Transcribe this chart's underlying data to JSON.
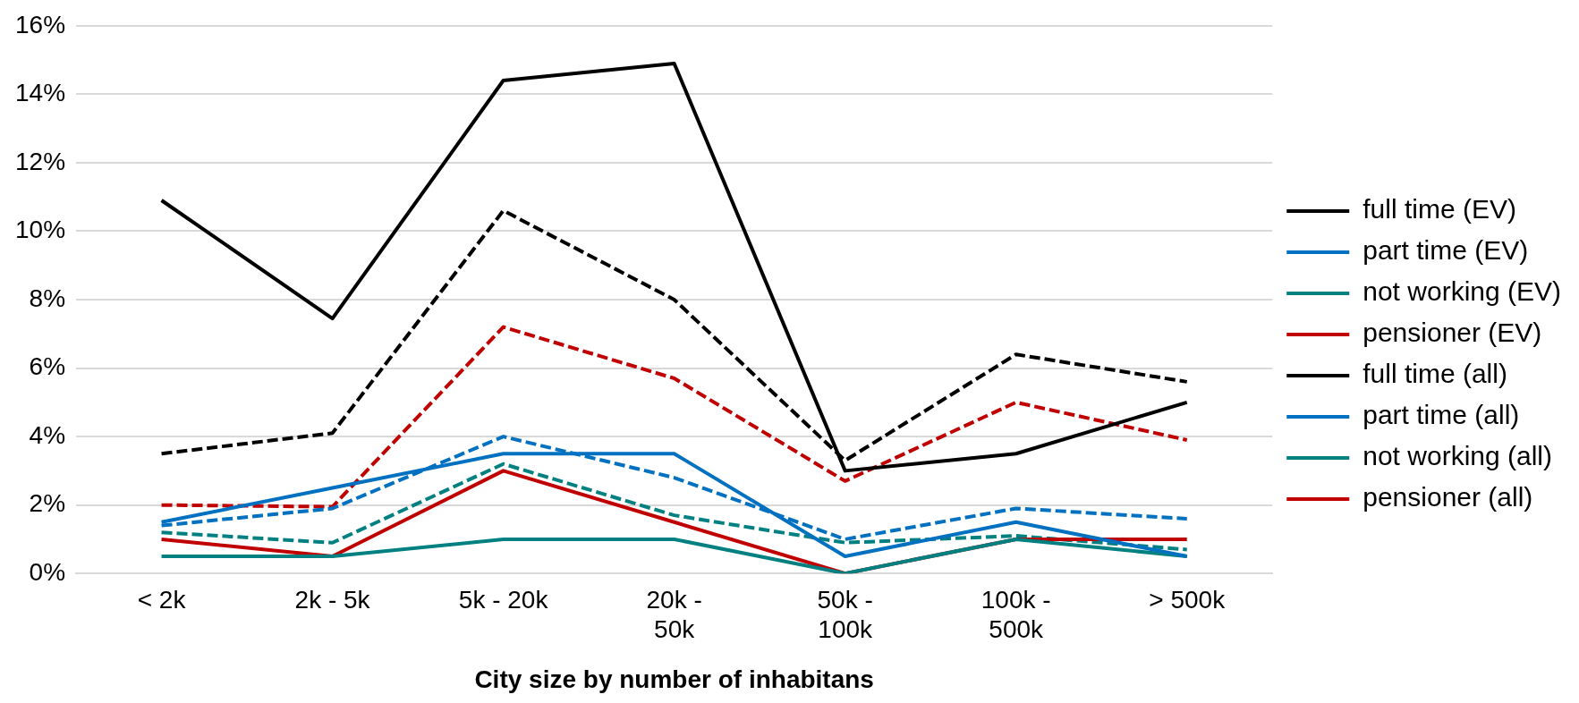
{
  "chart_data": {
    "type": "line",
    "xlabel": "City size by number of inhabitans",
    "categories": [
      "< 2k",
      "2k - 5k",
      "5k - 20k",
      "20k -\n50k",
      "50k -\n100k",
      "100k -\n500k",
      "> 500k"
    ],
    "series": [
      {
        "name": "full time (EV)",
        "color": "#000000",
        "line_style": "solid",
        "values": [
          10.9,
          7.45,
          14.4,
          14.9,
          3.0,
          3.5,
          5.0
        ]
      },
      {
        "name": "part time (EV)",
        "color": "#0070c0",
        "line_style": "solid",
        "values": [
          1.5,
          2.5,
          3.5,
          3.5,
          0.5,
          1.5,
          0.5
        ]
      },
      {
        "name": "not working (EV)",
        "color": "#008080",
        "line_style": "solid",
        "values": [
          0.5,
          0.5,
          1.0,
          1.0,
          0.0,
          1.0,
          0.5
        ]
      },
      {
        "name": "pensioner (EV)",
        "color": "#c00000",
        "line_style": "solid",
        "values": [
          1.0,
          0.5,
          3.0,
          1.5,
          0.0,
          1.0,
          1.0
        ]
      },
      {
        "name": "full time (all)",
        "color": "#000000",
        "line_style": "dashed",
        "values": [
          3.5,
          4.1,
          10.6,
          8.0,
          3.3,
          6.4,
          5.6
        ]
      },
      {
        "name": "part time (all)",
        "color": "#0070c0",
        "line_style": "dashed",
        "values": [
          1.4,
          1.9,
          4.0,
          2.8,
          1.0,
          1.9,
          1.6
        ]
      },
      {
        "name": "not working (all)",
        "color": "#008080",
        "line_style": "dashed",
        "values": [
          1.2,
          0.9,
          3.2,
          1.7,
          0.9,
          1.1,
          0.7
        ]
      },
      {
        "name": "pensioner (all)",
        "color": "#c00000",
        "line_style": "dashed",
        "values": [
          2.0,
          1.95,
          7.2,
          5.7,
          2.7,
          5.0,
          3.9
        ]
      }
    ],
    "ylim": [
      0,
      16
    ],
    "yticks": [
      {
        "value": 0,
        "label": "0%"
      },
      {
        "value": 2,
        "label": "2%"
      },
      {
        "value": 4,
        "label": "4%"
      },
      {
        "value": 6,
        "label": "6%"
      },
      {
        "value": 8,
        "label": "8%"
      },
      {
        "value": 10,
        "label": "10%"
      },
      {
        "value": 12,
        "label": "12%"
      },
      {
        "value": 14,
        "label": "14%"
      },
      {
        "value": 16,
        "label": "16%"
      }
    ],
    "grid": "y",
    "legend": "right",
    "marker": "none"
  }
}
